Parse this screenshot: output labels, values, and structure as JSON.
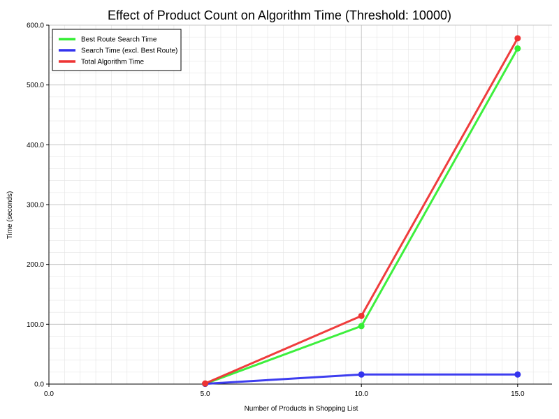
{
  "chart_data": {
    "type": "line",
    "title": "Effect of Product Count on Algorithm Time (Threshold: 10000)",
    "xlabel": "Number of Products in Shopping List",
    "ylabel": "Time (seconds)",
    "xlim": [
      0,
      16.1
    ],
    "ylim": [
      0,
      600
    ],
    "x_ticks": [
      0,
      5,
      10,
      15
    ],
    "x_tick_labels": [
      "0.0",
      "5.0",
      "10.0",
      "15.0"
    ],
    "y_ticks": [
      0,
      100,
      200,
      300,
      400,
      500,
      600
    ],
    "y_tick_labels": [
      "0.0",
      "100.0",
      "200.0",
      "300.0",
      "400.0",
      "500.0",
      "600.0"
    ],
    "grid": true,
    "legend_position": "top-left",
    "x": [
      5,
      10,
      15
    ],
    "series": [
      {
        "name": "Best Route Search Time",
        "color": "#33ee33",
        "values": [
          0.5,
          97,
          561
        ]
      },
      {
        "name": "Search Time (excl. Best Route)",
        "color": "#3333ee",
        "values": [
          0.5,
          16,
          16
        ]
      },
      {
        "name": "Total Algorithm Time",
        "color": "#ee3333",
        "values": [
          1,
          114,
          578
        ]
      }
    ]
  }
}
